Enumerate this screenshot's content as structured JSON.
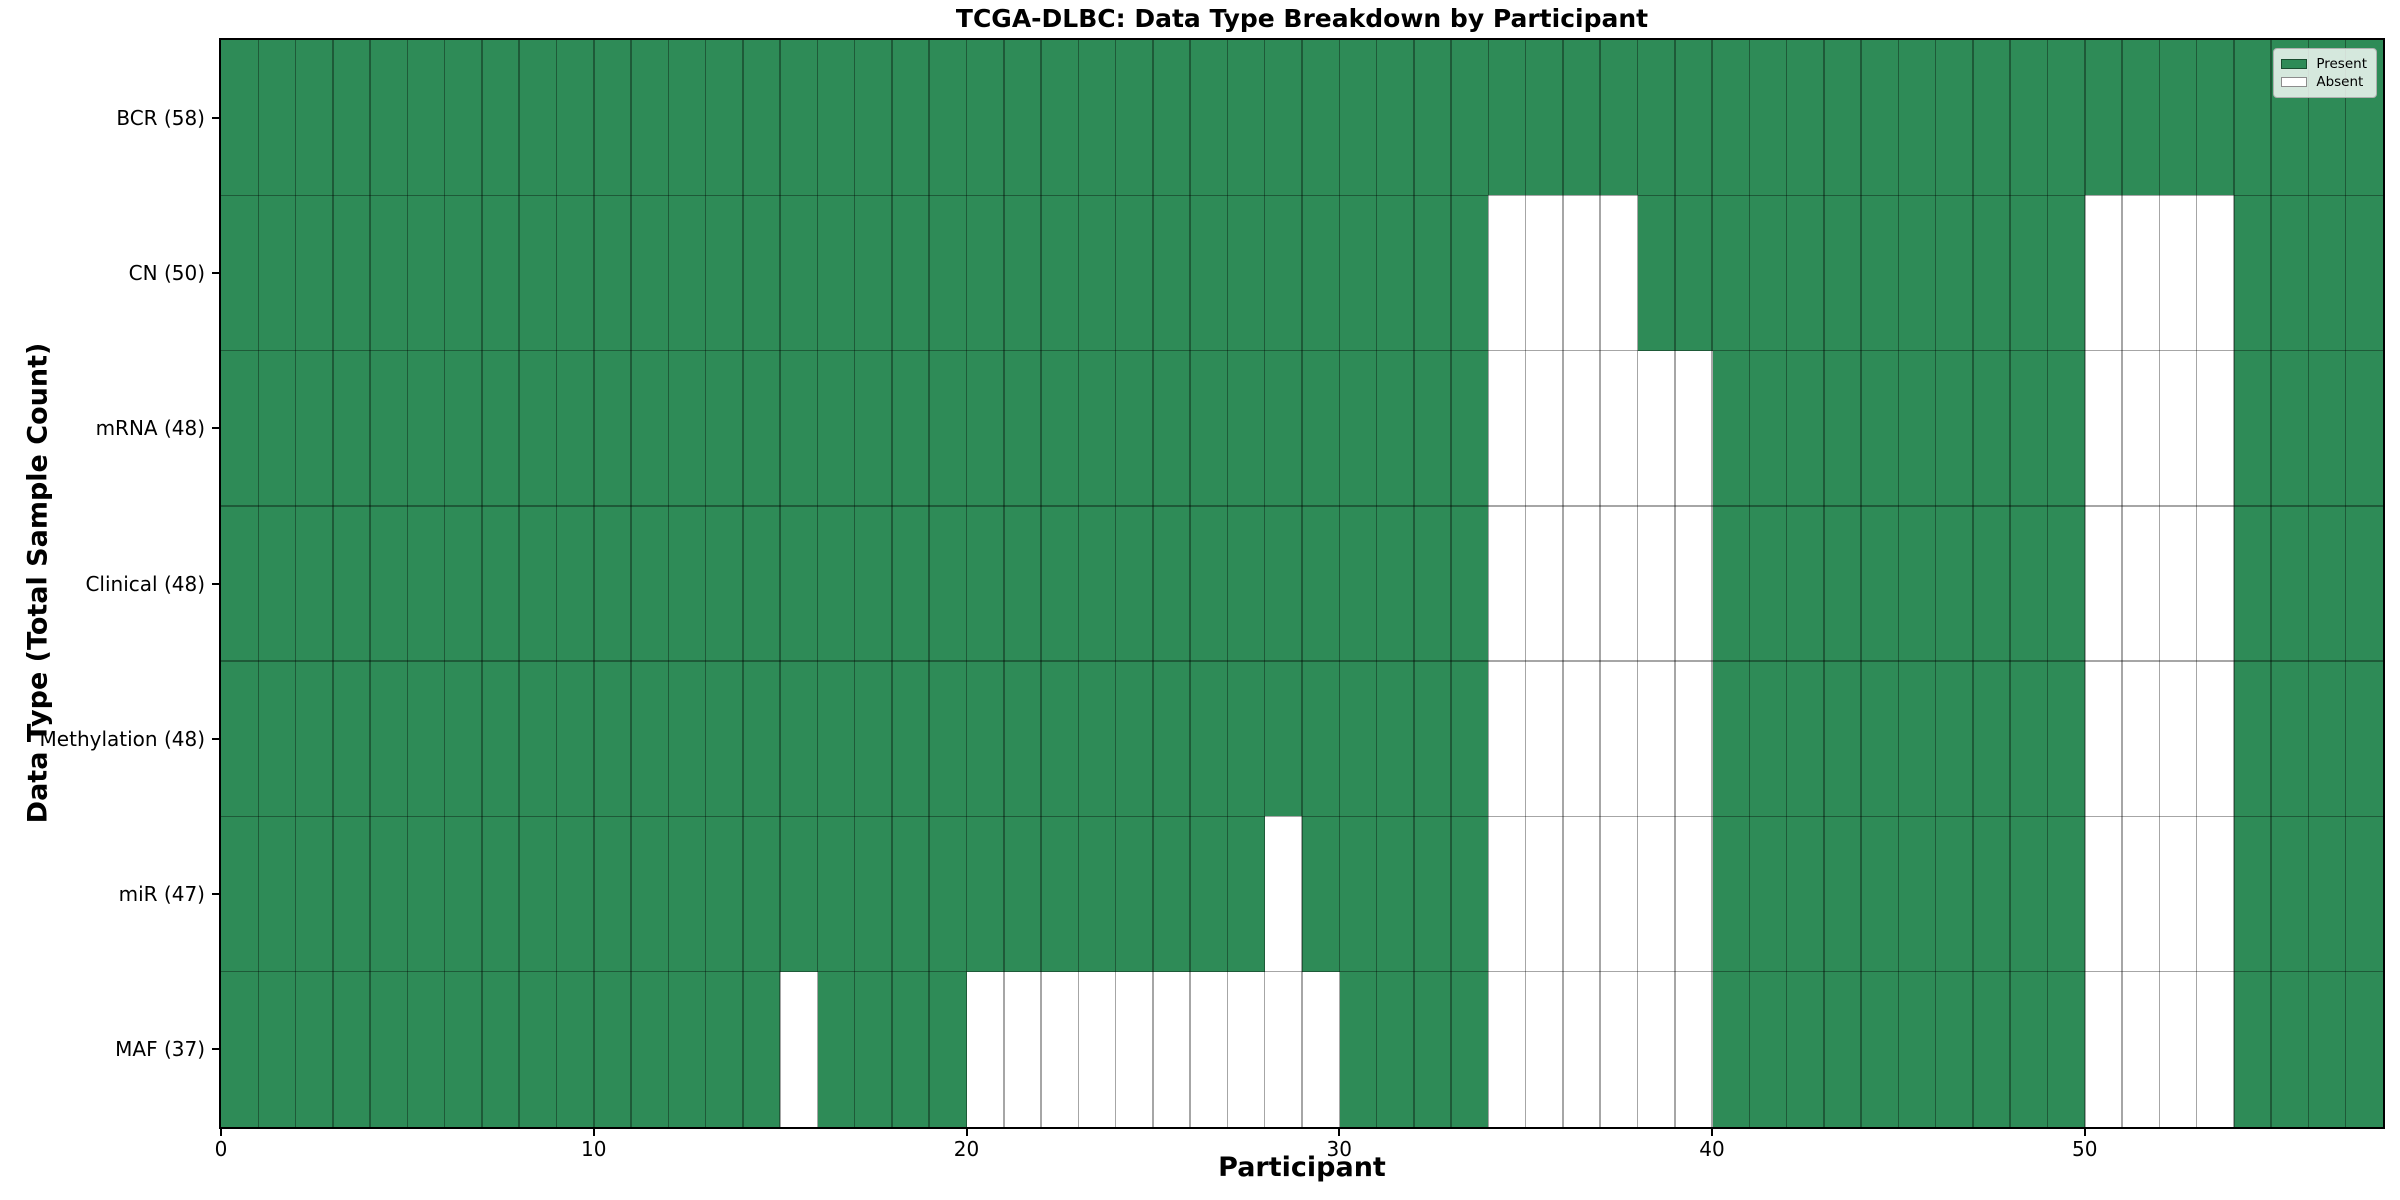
{
  "chart_data": {
    "type": "heatmap",
    "title": "TCGA-DLBC: Data Type Breakdown by Participant",
    "xlabel": "Participant",
    "ylabel": "Data Type (Total Sample Count)",
    "x_range": [
      0,
      58
    ],
    "x_ticks": [
      0,
      10,
      20,
      30,
      40,
      50
    ],
    "n_participants": 58,
    "grid": true,
    "legend_position": "upper right",
    "rows": [
      {
        "label": "BCR (58)",
        "data_type": "BCR",
        "present_count": 58,
        "absent_participants": []
      },
      {
        "label": "CN (50)",
        "data_type": "CN",
        "present_count": 50,
        "absent_participants": [
          34,
          35,
          36,
          37,
          50,
          51,
          52,
          53
        ]
      },
      {
        "label": "mRNA (48)",
        "data_type": "mRNA",
        "present_count": 48,
        "absent_participants": [
          34,
          35,
          36,
          37,
          38,
          39,
          50,
          51,
          52,
          53
        ]
      },
      {
        "label": "Clinical (48)",
        "data_type": "Clinical",
        "present_count": 48,
        "absent_participants": [
          34,
          35,
          36,
          37,
          38,
          39,
          50,
          51,
          52,
          53
        ]
      },
      {
        "label": "Methylation (48)",
        "data_type": "Methylation",
        "present_count": 48,
        "absent_participants": [
          34,
          35,
          36,
          37,
          38,
          39,
          50,
          51,
          52,
          53
        ]
      },
      {
        "label": "miR (47)",
        "data_type": "miR",
        "present_count": 47,
        "absent_participants": [
          28,
          34,
          35,
          36,
          37,
          38,
          39,
          50,
          51,
          52,
          53
        ]
      },
      {
        "label": "MAF (37)",
        "data_type": "MAF",
        "present_count": 37,
        "absent_participants": [
          15,
          20,
          21,
          22,
          23,
          24,
          25,
          26,
          27,
          28,
          29,
          34,
          35,
          36,
          37,
          38,
          39,
          50,
          51,
          52,
          53
        ]
      }
    ],
    "legend": [
      {
        "label": "Present",
        "color": "#2e8b57"
      },
      {
        "label": "Absent",
        "color": "#ffffff"
      }
    ],
    "colors": {
      "present": "#2e8b57",
      "absent": "#ffffff",
      "grid": "rgba(0,0,0,0.35)",
      "spine": "#000000",
      "legend_border": "#b0b0b0"
    }
  }
}
